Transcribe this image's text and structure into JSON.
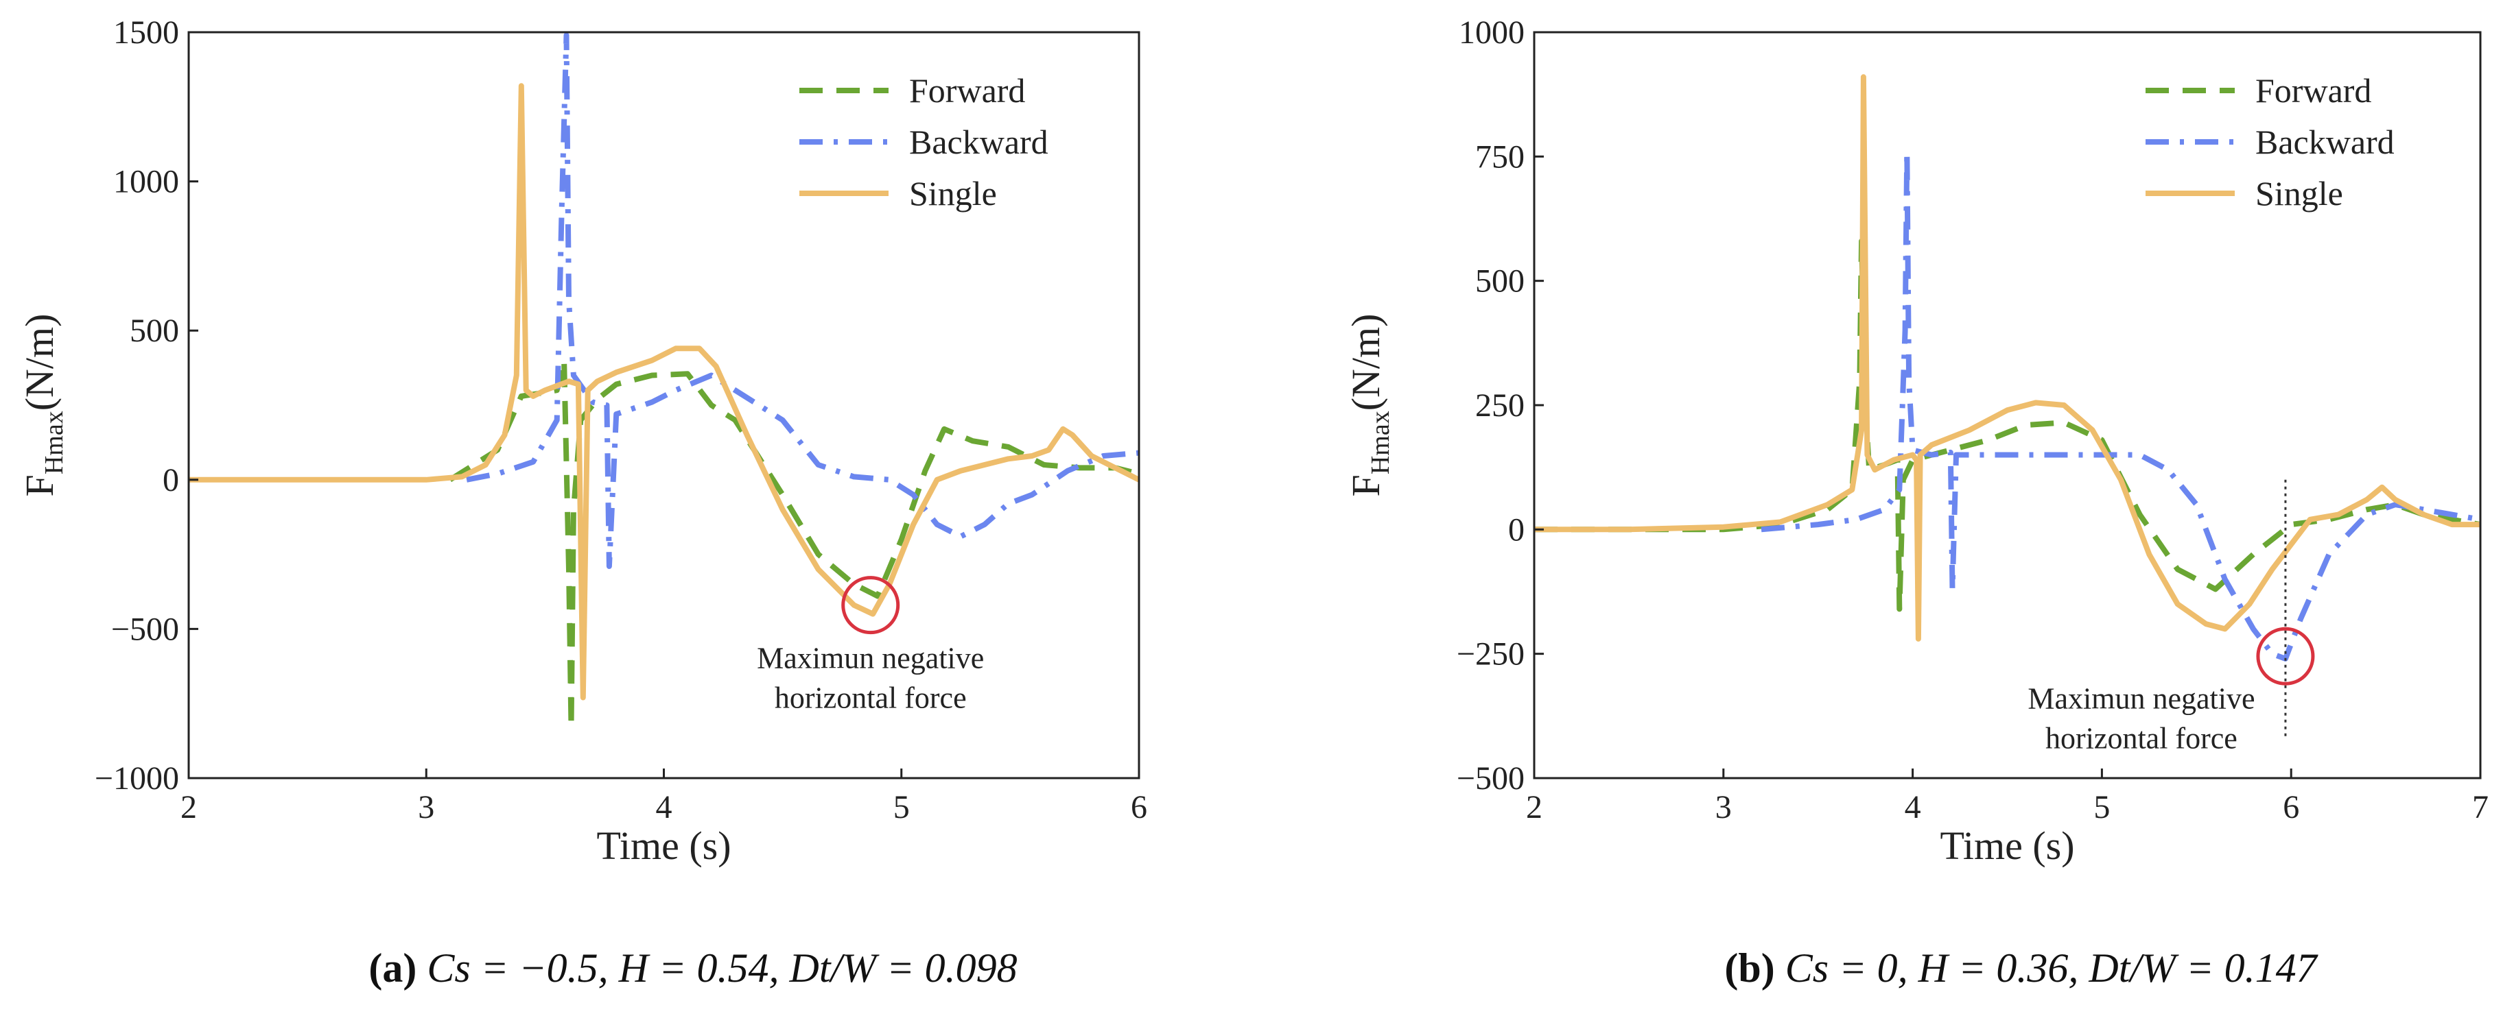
{
  "chart_data": [
    {
      "type": "line",
      "panel_label": "(a)",
      "caption": "C_s = −0.5, H = 0.54, D_t/W  = 0.098",
      "caption_parts": {
        "label": "(a)",
        "params": "Cs = −0.5, H = 0.54, Dt/W  = 0.098"
      },
      "xlabel": "Time (s)",
      "ylabel_main": "F",
      "ylabel_sub": "Hmax",
      "ylabel_unit": "(N/m)",
      "xlim": [
        2,
        6
      ],
      "ylim": [
        -1000,
        1500
      ],
      "xticks": [
        2,
        3,
        4,
        5,
        6
      ],
      "yticks": [
        -1000,
        -500,
        0,
        500,
        1000,
        1500
      ],
      "ytick_labels": [
        "−1000",
        "−500",
        "0",
        "500",
        "1000",
        "1500"
      ],
      "legend": [
        "Forward",
        "Backward",
        "Single"
      ],
      "annotation": {
        "lines": [
          "Maximun negative",
          "horizontal force"
        ],
        "x": 4.87,
        "y": -420
      },
      "series": [
        {
          "name": "Forward",
          "color": "#6aa633",
          "style": "dashed",
          "x": [
            3.1,
            3.3,
            3.4,
            3.48,
            3.55,
            3.58,
            3.6,
            3.61,
            3.62,
            3.65,
            3.72,
            3.8,
            3.95,
            4.1,
            4.2,
            4.3,
            4.5,
            4.65,
            4.8,
            4.9,
            5.0,
            5.1,
            5.18,
            5.3,
            5.45,
            5.6,
            5.75,
            5.9,
            6.0
          ],
          "y": [
            0,
            100,
            280,
            290,
            300,
            400,
            -300,
            -830,
            -100,
            200,
            270,
            320,
            350,
            355,
            250,
            200,
            -50,
            -250,
            -350,
            -390,
            -200,
            30,
            170,
            130,
            110,
            50,
            40,
            40,
            20
          ]
        },
        {
          "name": "Backward",
          "color": "#6b86ef",
          "style": "dashdot",
          "x": [
            3.17,
            3.3,
            3.45,
            3.55,
            3.57,
            3.59,
            3.6,
            3.62,
            3.7,
            3.76,
            3.77,
            3.8,
            3.95,
            4.05,
            4.2,
            4.3,
            4.5,
            4.65,
            4.8,
            4.95,
            5.05,
            5.15,
            5.25,
            5.35,
            5.45,
            5.55,
            5.7,
            5.85,
            6.0
          ],
          "y": [
            0,
            20,
            60,
            200,
            900,
            1490,
            600,
            350,
            260,
            250,
            -290,
            220,
            260,
            300,
            350,
            300,
            200,
            50,
            10,
            0,
            -50,
            -150,
            -190,
            -150,
            -80,
            -50,
            30,
            80,
            90
          ]
        },
        {
          "name": "Single",
          "color": "#eebd6c",
          "style": "solid",
          "x": [
            2.0,
            2.5,
            3.0,
            3.15,
            3.25,
            3.33,
            3.38,
            3.4,
            3.42,
            3.45,
            3.5,
            3.6,
            3.64,
            3.66,
            3.68,
            3.72,
            3.8,
            3.95,
            4.05,
            4.15,
            4.22,
            4.35,
            4.5,
            4.65,
            4.8,
            4.88,
            4.95,
            5.05,
            5.15,
            5.25,
            5.35,
            5.45,
            5.55,
            5.62,
            5.68,
            5.72,
            5.8,
            5.9,
            6.0
          ],
          "y": [
            0,
            0,
            0,
            10,
            50,
            150,
            350,
            1320,
            300,
            280,
            300,
            330,
            320,
            -730,
            300,
            330,
            360,
            400,
            440,
            440,
            380,
            150,
            -100,
            -300,
            -420,
            -450,
            -350,
            -150,
            0,
            30,
            50,
            70,
            80,
            100,
            170,
            150,
            80,
            40,
            0
          ]
        }
      ]
    },
    {
      "type": "line",
      "panel_label": "(b)",
      "caption": "C_s = 0, H = 0.36, D_t/W  = 0.147",
      "caption_parts": {
        "label": "(b)",
        "params": "Cs = 0, H = 0.36, Dt/W  = 0.147"
      },
      "xlabel": "Time (s)",
      "ylabel_main": "F",
      "ylabel_sub": "Hmax",
      "ylabel_unit": "(N/m)",
      "xlim": [
        2,
        7
      ],
      "ylim": [
        -500,
        1000
      ],
      "xticks": [
        2,
        3,
        4,
        5,
        6,
        7
      ],
      "yticks": [
        -500,
        -250,
        0,
        250,
        500,
        750,
        1000
      ],
      "ytick_labels": [
        "−500",
        "−250",
        "0",
        "250",
        "500",
        "750",
        "1000"
      ],
      "legend": [
        "Forward",
        "Backward",
        "Single"
      ],
      "annotation": {
        "lines": [
          "Maximun negative",
          "horizontal force"
        ],
        "x": 5.97,
        "y": -255,
        "vline_x": 5.97
      },
      "series": [
        {
          "name": "Forward",
          "color": "#6aa633",
          "style": "dashed",
          "x": [
            2.0,
            2.5,
            3.0,
            3.3,
            3.55,
            3.68,
            3.72,
            3.73,
            3.75,
            3.77,
            3.85,
            3.92,
            3.93,
            3.95,
            4.0,
            4.2,
            4.4,
            4.6,
            4.8,
            5.0,
            5.2,
            5.4,
            5.6,
            5.8,
            6.0,
            6.2,
            6.4,
            6.55,
            6.7,
            6.85,
            7.0
          ],
          "y": [
            0,
            0,
            0,
            10,
            40,
            80,
            300,
            580,
            250,
            120,
            130,
            140,
            -160,
            100,
            140,
            160,
            180,
            210,
            215,
            180,
            30,
            -80,
            -120,
            -50,
            10,
            20,
            40,
            50,
            30,
            20,
            10
          ]
        },
        {
          "name": "Backward",
          "color": "#6b86ef",
          "style": "dashdot",
          "x": [
            3.2,
            3.5,
            3.7,
            3.85,
            3.93,
            3.96,
            3.97,
            3.98,
            4.0,
            4.1,
            4.2,
            4.21,
            4.23,
            4.4,
            4.6,
            4.8,
            5.0,
            5.2,
            5.35,
            5.5,
            5.65,
            5.8,
            5.9,
            5.97,
            6.05,
            6.2,
            6.4,
            6.55,
            6.7,
            6.85,
            7.0
          ],
          "y": [
            0,
            10,
            20,
            40,
            80,
            400,
            760,
            300,
            160,
            150,
            155,
            -120,
            150,
            150,
            150,
            150,
            150,
            150,
            120,
            50,
            -100,
            -200,
            -250,
            -260,
            -180,
            -50,
            30,
            50,
            40,
            30,
            20
          ]
        },
        {
          "name": "Single",
          "color": "#eebd6c",
          "style": "solid",
          "x": [
            2.0,
            2.5,
            3.0,
            3.3,
            3.55,
            3.68,
            3.73,
            3.74,
            3.76,
            3.8,
            3.9,
            4.0,
            4.02,
            4.03,
            4.04,
            4.1,
            4.3,
            4.5,
            4.65,
            4.8,
            4.95,
            5.1,
            5.25,
            5.4,
            5.55,
            5.65,
            5.78,
            5.9,
            6.0,
            6.1,
            6.25,
            6.4,
            6.48,
            6.55,
            6.7,
            6.85,
            7.0
          ],
          "y": [
            0,
            0,
            5,
            15,
            50,
            80,
            200,
            910,
            150,
            120,
            140,
            150,
            140,
            -220,
            150,
            170,
            200,
            240,
            255,
            250,
            200,
            100,
            -50,
            -150,
            -190,
            -200,
            -150,
            -80,
            -30,
            20,
            30,
            60,
            85,
            60,
            30,
            10,
            10
          ]
        }
      ]
    }
  ]
}
